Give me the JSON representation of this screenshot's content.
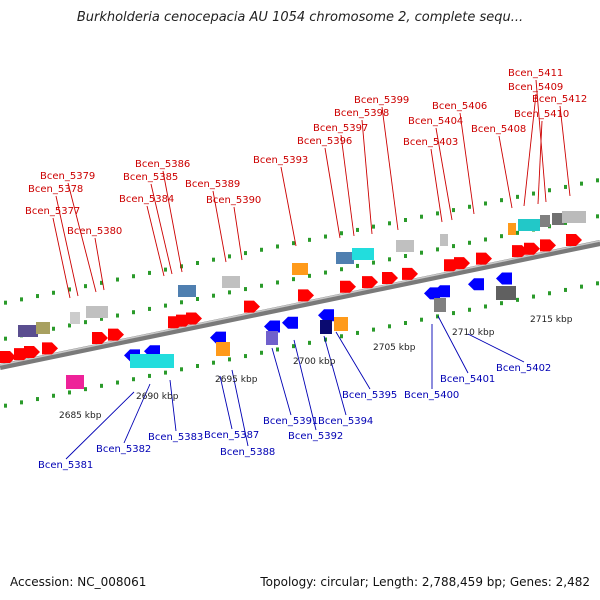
{
  "title": "Burkholderia cenocepacia AU 1054 chromosome 2, complete sequ...",
  "footer": {
    "accession": "Accession: NC_008061",
    "summary": "Topology: circular; Length: 2,788,459 bp; Genes: 2,482"
  },
  "colors": {
    "forward_label": "#cc0000",
    "reverse_label": "#0000b4",
    "forward_gene": "#ff0000",
    "reverse_gene": "#0000ff",
    "backbone": "#808080",
    "ticks": "#2a9a2a"
  },
  "scale_labels": [
    "2685 kbp",
    "2690 kbp",
    "2695 kbp",
    "2700 kbp",
    "2705 kbp",
    "2710 kbp",
    "2715 kbp"
  ],
  "forward_genes": [
    "Bcen_5377",
    "Bcen_5378",
    "Bcen_5379",
    "Bcen_5380",
    "Bcen_5384",
    "Bcen_5385",
    "Bcen_5386",
    "Bcen_5389",
    "Bcen_5390",
    "Bcen_5393",
    "Bcen_5396",
    "Bcen_5397",
    "Bcen_5398",
    "Bcen_5399",
    "Bcen_5403",
    "Bcen_5404",
    "Bcen_5406",
    "Bcen_5408",
    "Bcen_5409",
    "Bcen_5410",
    "Bcen_5411",
    "Bcen_5412"
  ],
  "reverse_genes": [
    "Bcen_5381",
    "Bcen_5382",
    "Bcen_5383",
    "Bcen_5387",
    "Bcen_5388",
    "Bcen_5391",
    "Bcen_5392",
    "Bcen_5394",
    "Bcen_5395",
    "Bcen_5400",
    "Bcen_5401",
    "Bcen_5402"
  ]
}
